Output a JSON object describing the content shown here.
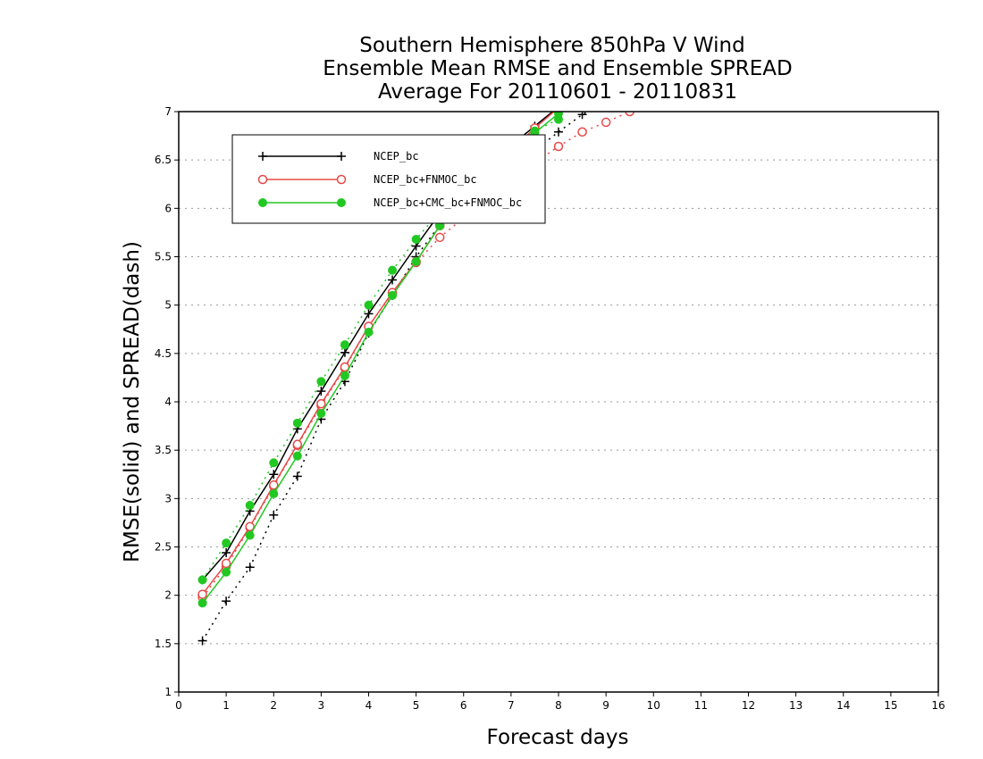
{
  "chart_data": {
    "type": "line",
    "title": [
      "Southern Hemisphere 850hPa V Wind",
      "Ensemble Mean RMSE and Ensemble SPREAD",
      "Average For 20110601 - 20110831"
    ],
    "xlabel": "Forecast days",
    "ylabel": "RMSE(solid) and SPREAD(dash)",
    "xlim": [
      0,
      16
    ],
    "ylim": [
      1,
      7
    ],
    "xticks": [
      "0",
      "1",
      "2",
      "3",
      "4",
      "5",
      "6",
      "7",
      "8",
      "9",
      "10",
      "11",
      "12",
      "13",
      "14",
      "15",
      "16"
    ],
    "yticks": [
      "1",
      "1.5",
      "2",
      "2.5",
      "3",
      "3.5",
      "4",
      "4.5",
      "5",
      "5.5",
      "6",
      "6.5",
      "7"
    ],
    "grid": "horizontal dotted",
    "legend_position": "top-left",
    "series": [
      {
        "name": "NCEP_bc",
        "color": "#000000",
        "marker": "plus",
        "rmse": {
          "x": [
            0.5,
            1,
            1.5,
            2,
            2.5,
            3,
            3.5,
            4,
            4.5,
            5,
            5.5,
            6,
            6.5,
            7,
            7.5,
            8
          ],
          "y": [
            2.16,
            2.44,
            2.87,
            3.25,
            3.72,
            4.11,
            4.51,
            4.91,
            5.26,
            5.61,
            5.95,
            6.22,
            6.45,
            6.65,
            6.85,
            7.05
          ]
        },
        "spread": {
          "x": [
            0.5,
            1,
            1.5,
            2,
            2.5,
            3,
            3.5,
            4,
            4.5,
            5,
            5.5,
            6,
            6.5,
            7,
            7.5,
            8,
            8.5,
            9,
            9.5
          ],
          "y": [
            1.53,
            1.94,
            2.29,
            2.83,
            3.23,
            3.82,
            4.21,
            4.71,
            5.1,
            5.5,
            5.83,
            6.05,
            6.25,
            6.42,
            6.6,
            6.79,
            6.97,
            7.1,
            7.2
          ]
        }
      },
      {
        "name": "NCEP_bc+FNMOC_bc",
        "color": "#e84848",
        "marker": "open-circle",
        "rmse": {
          "x": [
            0.5,
            1,
            1.5,
            2,
            2.5,
            3,
            3.5,
            4,
            4.5,
            5,
            5.5,
            6,
            6.5,
            7,
            7.5,
            8
          ],
          "y": [
            2.01,
            2.33,
            2.71,
            3.14,
            3.56,
            3.98,
            4.36,
            4.78,
            5.13,
            5.45,
            5.82,
            6.1,
            6.38,
            6.6,
            6.83,
            7.04
          ]
        },
        "spread": {
          "x": [
            0.5,
            1,
            1.5,
            2,
            2.5,
            3,
            3.5,
            4,
            4.5,
            5,
            5.5,
            6,
            6.5,
            7,
            7.5,
            8,
            8.5,
            9,
            9.5,
            10
          ],
          "y": [
            1.98,
            2.3,
            2.7,
            3.13,
            3.55,
            3.96,
            4.35,
            4.78,
            5.12,
            5.44,
            5.7,
            5.9,
            6.1,
            6.28,
            6.47,
            6.64,
            6.79,
            6.89,
            7.0,
            7.08
          ]
        }
      },
      {
        "name": "NCEP_bc+CMC_bc+FNMOC_bc",
        "color": "#22c822",
        "marker": "filled-circle",
        "rmse": {
          "x": [
            0.5,
            1,
            1.5,
            2,
            2.5,
            3,
            3.5,
            4,
            4.5,
            5,
            5.5,
            6,
            6.5,
            7,
            7.5,
            8
          ],
          "y": [
            1.92,
            2.24,
            2.62,
            3.05,
            3.44,
            3.88,
            4.27,
            4.72,
            5.1,
            5.45,
            5.82,
            6.1,
            6.35,
            6.55,
            6.78,
            6.98
          ]
        },
        "spread": {
          "x": [
            0.5,
            1,
            1.5,
            2,
            2.5,
            3,
            3.5,
            4,
            4.5,
            5,
            5.5,
            6,
            6.5,
            7,
            7.5,
            8
          ],
          "y": [
            2.16,
            2.54,
            2.93,
            3.37,
            3.78,
            4.21,
            4.59,
            5.0,
            5.36,
            5.68,
            5.97,
            6.2,
            6.42,
            6.62,
            6.8,
            6.92
          ]
        }
      }
    ]
  }
}
